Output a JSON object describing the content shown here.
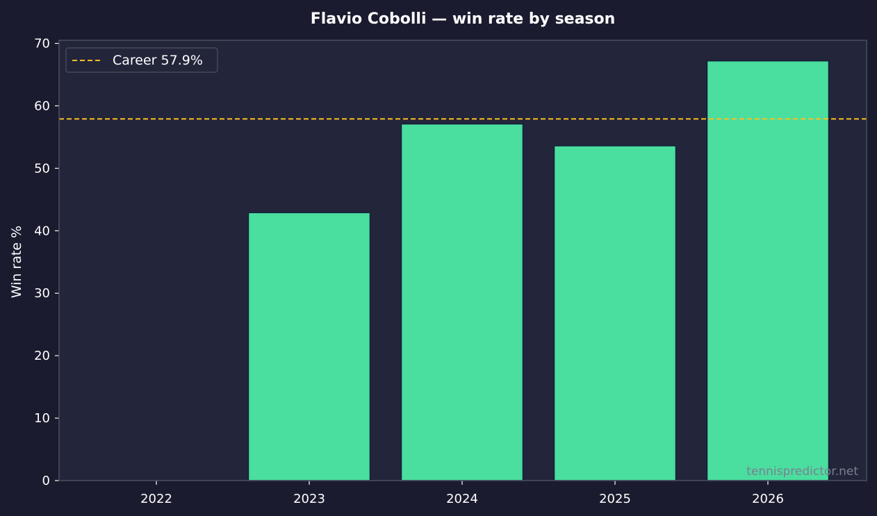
{
  "chart_data": {
    "type": "bar",
    "title": "Flavio Cobolli — win rate by season",
    "xlabel": "",
    "ylabel": "Win rate %",
    "categories": [
      "2022",
      "2023",
      "2024",
      "2025",
      "2026"
    ],
    "values": [
      0,
      42.9,
      57.1,
      53.6,
      67.2
    ],
    "ylim": [
      0,
      70.5
    ],
    "yticks": [
      0,
      10,
      20,
      30,
      40,
      50,
      60,
      70
    ],
    "reference_line": {
      "label": "Career 57.9%",
      "value": 57.9,
      "color": "#fbbf24",
      "style": "dashed"
    },
    "legend_placement": "top-left",
    "grid": false,
    "colors": {
      "bar": "#4ade9f",
      "bar_edge": "#14213a",
      "plot_background": "#23253a",
      "figure_background": "#1a1b2e",
      "spine": "#4d4f5f"
    },
    "watermark": "tennispredictor.net"
  }
}
